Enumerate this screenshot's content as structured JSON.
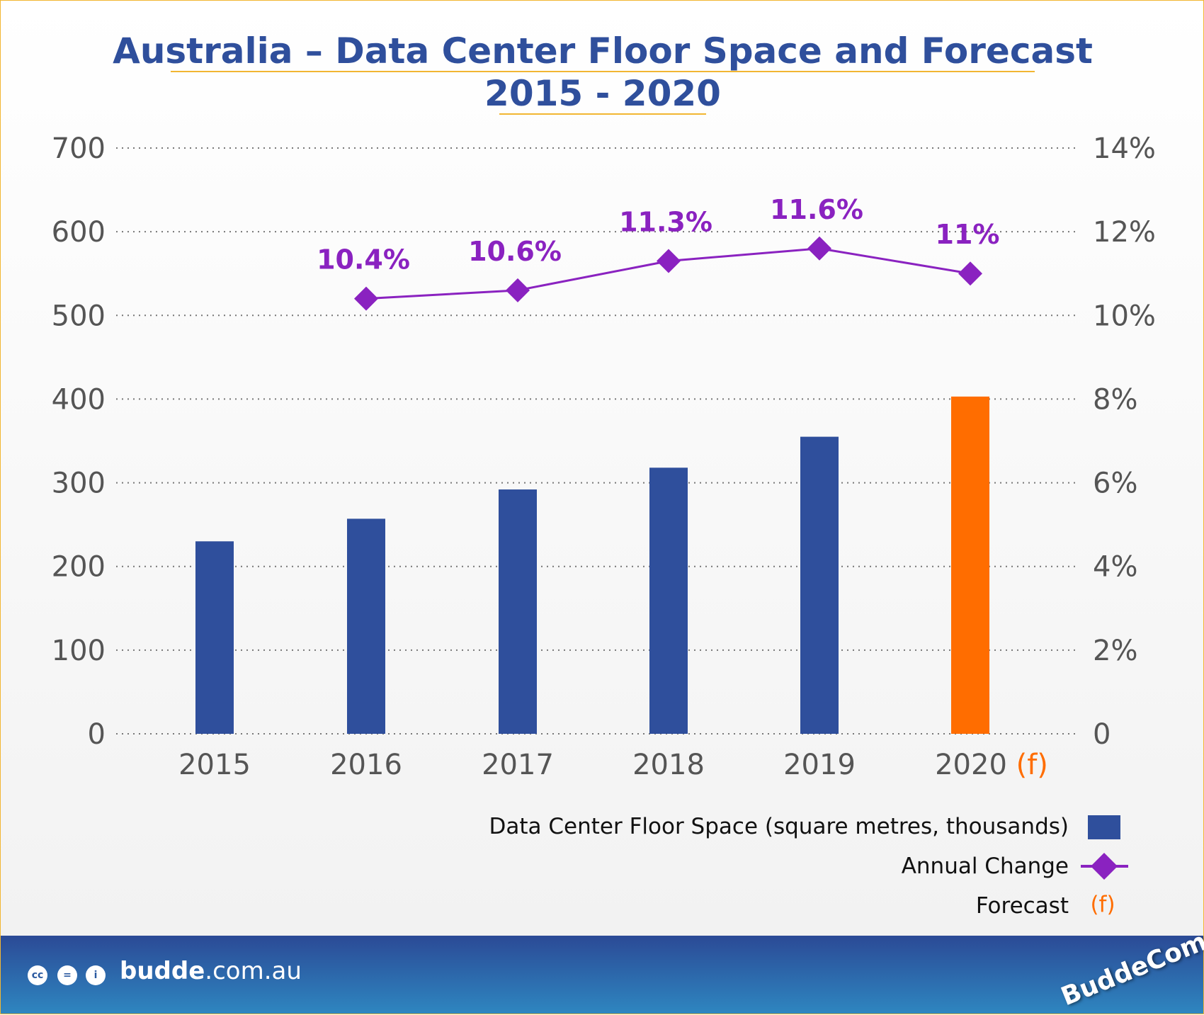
{
  "title_line1": "Australia – Data Center Floor Space and Forecast",
  "title_line2": "2015 - 2020",
  "colors": {
    "bar": "#2f4f9c",
    "forecast_bar": "#ff6d00",
    "line": "#8a22c0",
    "title": "#2f4f9c",
    "accent_border": "#f2b632"
  },
  "chart_data": {
    "type": "bar+line",
    "categories": [
      "2015",
      "2016",
      "2017",
      "2018",
      "2019",
      "2020"
    ],
    "forecast_marker": "(f)",
    "forecast_categories": [
      "2020"
    ],
    "series": [
      {
        "name": "Data Center Floor Space (square metres, thousands)",
        "type": "bar",
        "axis": "left",
        "values": [
          230,
          257,
          292,
          318,
          355,
          403
        ]
      },
      {
        "name": "Annual Change",
        "type": "line",
        "axis": "right",
        "marker": "diamond",
        "values": [
          null,
          10.4,
          10.6,
          11.3,
          11.6,
          11.0
        ],
        "labels": [
          "",
          "10.4%",
          "10.6%",
          "11.3%",
          "11.6%",
          "11%"
        ]
      }
    ],
    "left_axis": {
      "ylim": [
        0,
        700
      ],
      "ticks": [
        "0",
        "100",
        "200",
        "300",
        "400",
        "500",
        "600",
        "700"
      ]
    },
    "right_axis": {
      "ylim": [
        0,
        14
      ],
      "ticks": [
        "0",
        "2%",
        "4%",
        "6%",
        "8%",
        "10%",
        "12%",
        "14%"
      ]
    },
    "grid": "horizontal dotted",
    "legend": {
      "placement": "bottom-right",
      "items": [
        "Data Center Floor Space (square metres, thousands)",
        "Annual Change",
        "Forecast"
      ],
      "forecast_symbol": "(f)"
    }
  },
  "footer": {
    "site_bold": "budde",
    "site_rest": ".com.au",
    "license_icons": [
      "cc-icon",
      "nd-icon",
      "by-icon"
    ],
    "logo_text": "BuddeComm"
  }
}
